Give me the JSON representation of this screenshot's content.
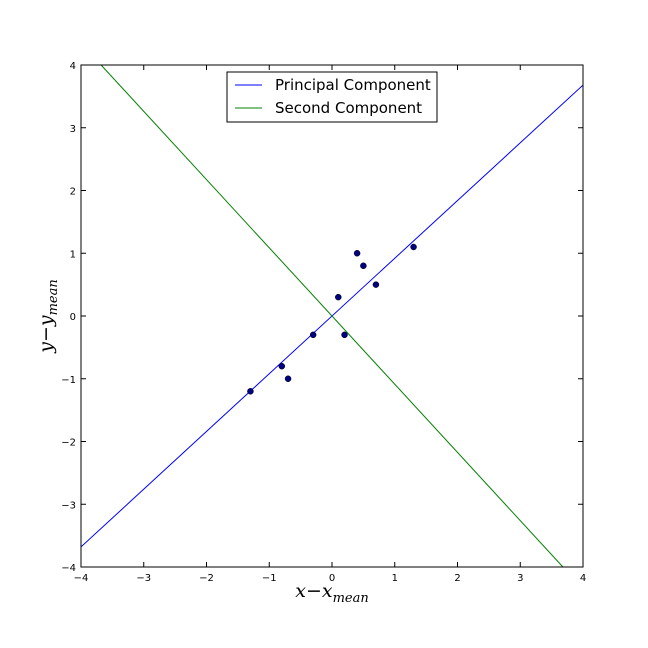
{
  "chart_data": {
    "type": "line",
    "title": "",
    "xlabel": {
      "main": "x−x",
      "sub": "mean"
    },
    "ylabel": {
      "main": "y−y",
      "sub": "mean"
    },
    "xlim": [
      -4,
      4
    ],
    "ylim": [
      -4,
      4
    ],
    "xticks": [
      -4,
      -3,
      -2,
      -1,
      0,
      1,
      2,
      3,
      4
    ],
    "yticks": [
      -4,
      -3,
      -2,
      -1,
      0,
      1,
      2,
      3,
      4
    ],
    "xtick_labels": [
      "−4",
      "−3",
      "−2",
      "−1",
      "0",
      "1",
      "2",
      "3",
      "4"
    ],
    "ytick_labels": [
      "−4",
      "−3",
      "−2",
      "−1",
      "0",
      "1",
      "2",
      "3",
      "4"
    ],
    "grid": false,
    "legend_position": "top-center",
    "scatter": {
      "color": "#000080",
      "points": [
        {
          "x": -1.3,
          "y": -1.2
        },
        {
          "x": -0.8,
          "y": -0.8
        },
        {
          "x": -0.7,
          "y": -1.0
        },
        {
          "x": -0.3,
          "y": -0.3
        },
        {
          "x": 0.1,
          "y": 0.3
        },
        {
          "x": 0.2,
          "y": -0.3
        },
        {
          "x": 0.4,
          "y": 1.0
        },
        {
          "x": 0.5,
          "y": 0.8
        },
        {
          "x": 0.7,
          "y": 0.5
        },
        {
          "x": 1.3,
          "y": 1.1
        }
      ]
    },
    "series": [
      {
        "name": "Principal Component",
        "color": "#0000ff",
        "x": [
          -4,
          4
        ],
        "y": [
          -3.68,
          3.68
        ]
      },
      {
        "name": "Second Component",
        "color": "#008000",
        "x": [
          -3.68,
          3.68
        ],
        "y": [
          4,
          -4
        ]
      }
    ]
  }
}
